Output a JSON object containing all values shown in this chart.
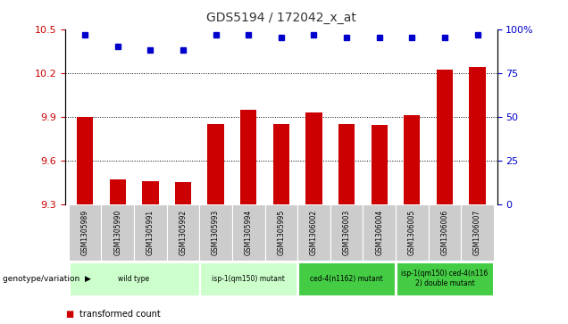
{
  "title": "GDS5194 / 172042_x_at",
  "samples": [
    "GSM1305989",
    "GSM1305990",
    "GSM1305991",
    "GSM1305992",
    "GSM1305993",
    "GSM1305994",
    "GSM1305995",
    "GSM1306002",
    "GSM1306003",
    "GSM1306004",
    "GSM1306005",
    "GSM1306006",
    "GSM1306007"
  ],
  "transformed_count": [
    9.9,
    9.47,
    9.46,
    9.45,
    9.85,
    9.95,
    9.85,
    9.93,
    9.85,
    9.84,
    9.91,
    10.22,
    10.24
  ],
  "percentile_rank": [
    97,
    90,
    88,
    88,
    97,
    97,
    95,
    97,
    95,
    95,
    95,
    95,
    97
  ],
  "ylim_left": [
    9.3,
    10.5
  ],
  "yticks_left": [
    9.3,
    9.6,
    9.9,
    10.2,
    10.5
  ],
  "yticks_right": [
    0,
    25,
    50,
    75,
    100
  ],
  "bar_color": "#cc0000",
  "dot_color": "#0000cc",
  "group_defs": [
    {
      "start": 0,
      "end": 3,
      "label": "wild type",
      "color": "#ccffcc"
    },
    {
      "start": 4,
      "end": 6,
      "label": "isp-1(qm150) mutant",
      "color": "#ccffcc"
    },
    {
      "start": 7,
      "end": 9,
      "label": "ced-4(n1162) mutant",
      "color": "#44cc44"
    },
    {
      "start": 10,
      "end": 12,
      "label": "isp-1(qm150) ced-4(n116\n2) double mutant",
      "color": "#44cc44"
    }
  ],
  "ylabel_left_color": "#cc0000",
  "ylabel_right_color": "#0000cc",
  "title_color": "#333333",
  "background_color": "#ffffff",
  "sample_bg": "#cccccc",
  "grid_lines": [
    9.6,
    9.9,
    10.2
  ]
}
